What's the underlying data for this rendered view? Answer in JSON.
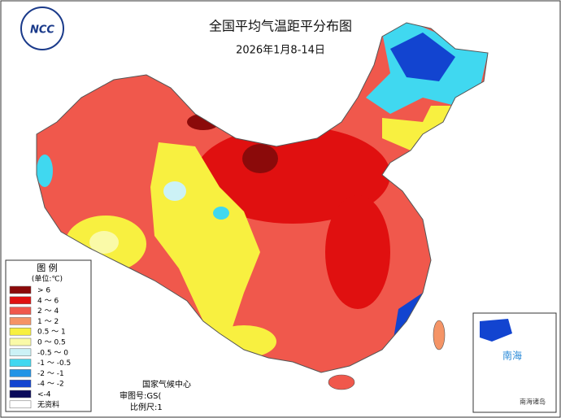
{
  "header": {
    "logo": "NCC",
    "title": "全国平均气温距平分布图",
    "subtitle": "2026年1月8-14日"
  },
  "legend": {
    "title": "图 例",
    "unit": "(单位:℃)",
    "items": [
      {
        "label": "> 6",
        "color": "#8b0a0a"
      },
      {
        "label": "4 ～ 6",
        "color": "#e01010"
      },
      {
        "label": "2 ～ 4",
        "color": "#f0584c"
      },
      {
        "label": "1 ～ 2",
        "color": "#f59466"
      },
      {
        "label": "0.5 ～ 1",
        "color": "#f8f040"
      },
      {
        "label": "0 ～ 0.5",
        "color": "#fafaa8"
      },
      {
        "label": "-0.5 ～ 0",
        "color": "#ccf2f6"
      },
      {
        "label": "-1 ～ -0.5",
        "color": "#40d8f0"
      },
      {
        "label": "-2 ～ -1",
        "color": "#2294e6"
      },
      {
        "label": "-4 ～ -2",
        "color": "#1244d0"
      },
      {
        "label": "<-4",
        "color": "#0a0a5a"
      },
      {
        "label": "无资料",
        "color": "#ffffff"
      }
    ]
  },
  "footer": {
    "agency": "国家气候中心",
    "review": "审图号:GS(",
    "scale": "比例尺:1"
  },
  "inset": {
    "sea": "南海",
    "islands": "南海诸岛"
  }
}
